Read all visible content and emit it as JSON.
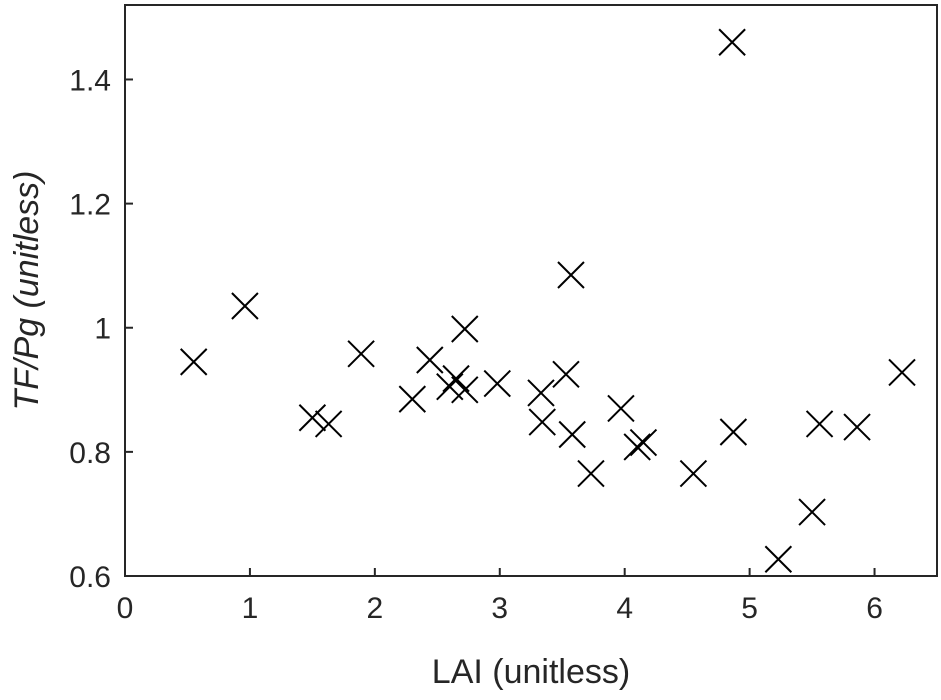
{
  "chart_data": {
    "type": "scatter",
    "xlabel": "LAI (unitless)",
    "ylabel": "TF/Pg (unitless)",
    "xlim": [
      0,
      6.5
    ],
    "ylim": [
      0.6,
      1.52
    ],
    "xticks": [
      0,
      1,
      2,
      3,
      4,
      5,
      6
    ],
    "yticks": [
      0.6,
      0.8,
      1,
      1.2,
      1.4
    ],
    "xtick_labels": [
      "0",
      "1",
      "2",
      "3",
      "4",
      "5",
      "6"
    ],
    "ytick_labels": [
      "0.6",
      "0.8",
      "1",
      "1.2",
      "1.4"
    ],
    "marker": "x",
    "marker_color": "#000000",
    "grid": false,
    "box": true,
    "series": [
      {
        "points": [
          [
            0.55,
            0.945
          ],
          [
            0.96,
            1.035
          ],
          [
            1.5,
            0.855
          ],
          [
            1.63,
            0.845
          ],
          [
            1.89,
            0.958
          ],
          [
            2.3,
            0.885
          ],
          [
            2.44,
            0.948
          ],
          [
            2.6,
            0.905
          ],
          [
            2.65,
            0.918
          ],
          [
            2.72,
            0.998
          ],
          [
            2.72,
            0.9
          ],
          [
            2.98,
            0.91
          ],
          [
            3.33,
            0.895
          ],
          [
            3.34,
            0.848
          ],
          [
            3.53,
            0.925
          ],
          [
            3.57,
            1.085
          ],
          [
            3.58,
            0.828
          ],
          [
            3.73,
            0.765
          ],
          [
            3.97,
            0.87
          ],
          [
            4.1,
            0.808
          ],
          [
            4.15,
            0.815
          ],
          [
            4.55,
            0.765
          ],
          [
            4.86,
            1.46
          ],
          [
            4.87,
            0.832
          ],
          [
            5.23,
            0.627
          ],
          [
            5.5,
            0.703
          ],
          [
            5.56,
            0.845
          ],
          [
            5.86,
            0.84
          ],
          [
            6.22,
            0.928
          ]
        ]
      }
    ]
  }
}
